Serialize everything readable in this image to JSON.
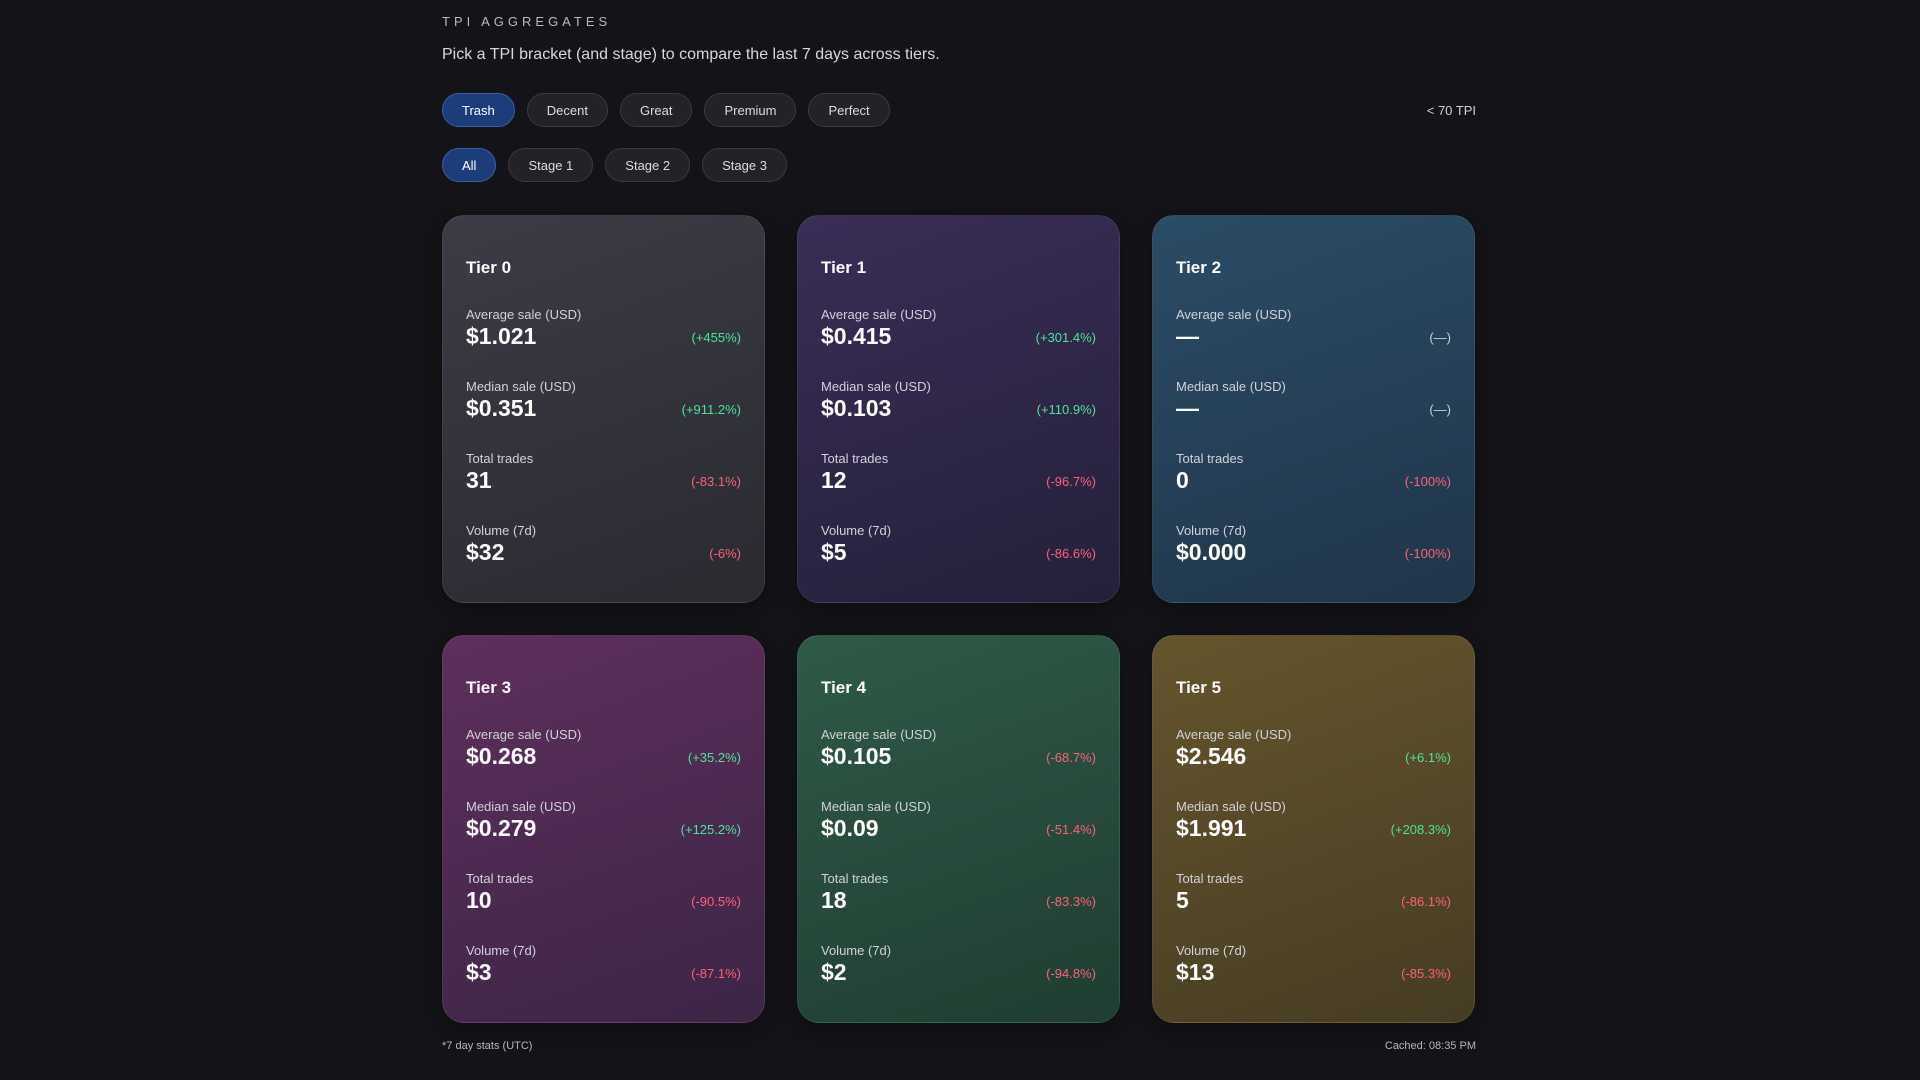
{
  "header": {
    "eyebrow": "TPI AGGREGATES",
    "subtitle": "Pick a TPI bracket (and stage) to compare the last 7 days across tiers.",
    "tpi_range": "< 70 TPI"
  },
  "brackets": [
    {
      "label": "Trash",
      "active": true
    },
    {
      "label": "Decent",
      "active": false
    },
    {
      "label": "Great",
      "active": false
    },
    {
      "label": "Premium",
      "active": false
    },
    {
      "label": "Perfect",
      "active": false
    }
  ],
  "stages": [
    {
      "label": "All",
      "active": true
    },
    {
      "label": "Stage 1",
      "active": false
    },
    {
      "label": "Stage 2",
      "active": false
    },
    {
      "label": "Stage 3",
      "active": false
    }
  ],
  "colors": {
    "accent": "#1d3d7a",
    "positive": "#4ee39a",
    "negative": "#ff6079"
  },
  "tiers": [
    {
      "title": "Tier 0",
      "gradient": [
        "#3c3c46",
        "#2a2a31"
      ],
      "stats": [
        {
          "label": "Average sale (USD)",
          "value": "$1.021",
          "change": "(+455%)",
          "trend": "pos"
        },
        {
          "label": "Median sale (USD)",
          "value": "$0.351",
          "change": "(+911.2%)",
          "trend": "pos"
        },
        {
          "label": "Total trades",
          "value": "31",
          "change": "(-83.1%)",
          "trend": "neg"
        },
        {
          "label": "Volume (7d)",
          "value": "$32",
          "change": "(-6%)",
          "trend": "neg"
        }
      ]
    },
    {
      "title": "Tier 1",
      "gradient": [
        "#3a2d57",
        "#24203a"
      ],
      "stats": [
        {
          "label": "Average sale (USD)",
          "value": "$0.415",
          "change": "(+301.4%)",
          "trend": "pos"
        },
        {
          "label": "Median sale (USD)",
          "value": "$0.103",
          "change": "(+110.9%)",
          "trend": "pos"
        },
        {
          "label": "Total trades",
          "value": "12",
          "change": "(-96.7%)",
          "trend": "neg"
        },
        {
          "label": "Volume (7d)",
          "value": "$5",
          "change": "(-86.6%)",
          "trend": "neg"
        }
      ]
    },
    {
      "title": "Tier 2",
      "gradient": [
        "#2b4c66",
        "#20354a"
      ],
      "stats": [
        {
          "label": "Average sale (USD)",
          "value": "—",
          "change": "(—)",
          "trend": "neutral"
        },
        {
          "label": "Median sale (USD)",
          "value": "—",
          "change": "(—)",
          "trend": "neutral"
        },
        {
          "label": "Total trades",
          "value": "0",
          "change": "(-100%)",
          "trend": "neg"
        },
        {
          "label": "Volume (7d)",
          "value": "$0.000",
          "change": "(-100%)",
          "trend": "neg"
        }
      ]
    },
    {
      "title": "Tier 3",
      "gradient": [
        "#5e2f5c",
        "#3c2546"
      ],
      "stats": [
        {
          "label": "Average sale (USD)",
          "value": "$0.268",
          "change": "(+35.2%)",
          "trend": "pos"
        },
        {
          "label": "Median sale (USD)",
          "value": "$0.279",
          "change": "(+125.2%)",
          "trend": "pos"
        },
        {
          "label": "Total trades",
          "value": "10",
          "change": "(-90.5%)",
          "trend": "neg"
        },
        {
          "label": "Volume (7d)",
          "value": "$3",
          "change": "(-87.1%)",
          "trend": "neg"
        }
      ]
    },
    {
      "title": "Tier 4",
      "gradient": [
        "#2f5a48",
        "#1f3d31"
      ],
      "stats": [
        {
          "label": "Average sale (USD)",
          "value": "$0.105",
          "change": "(-68.7%)",
          "trend": "neg"
        },
        {
          "label": "Median sale (USD)",
          "value": "$0.09",
          "change": "(-51.4%)",
          "trend": "neg"
        },
        {
          "label": "Total trades",
          "value": "18",
          "change": "(-83.3%)",
          "trend": "neg"
        },
        {
          "label": "Volume (7d)",
          "value": "$2",
          "change": "(-94.8%)",
          "trend": "neg"
        }
      ]
    },
    {
      "title": "Tier 5",
      "gradient": [
        "#65552d",
        "#463c23"
      ],
      "stats": [
        {
          "label": "Average sale (USD)",
          "value": "$2.546",
          "change": "(+6.1%)",
          "trend": "pos"
        },
        {
          "label": "Median sale (USD)",
          "value": "$1.991",
          "change": "(+208.3%)",
          "trend": "pos"
        },
        {
          "label": "Total trades",
          "value": "5",
          "change": "(-86.1%)",
          "trend": "neg"
        },
        {
          "label": "Volume (7d)",
          "value": "$13",
          "change": "(-85.3%)",
          "trend": "neg"
        }
      ]
    }
  ],
  "footer": {
    "note": "*7 day stats (UTC)",
    "cached": "Cached: 08:35 PM"
  }
}
